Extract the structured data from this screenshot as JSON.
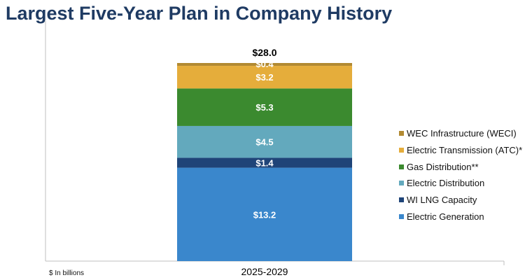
{
  "page": {
    "title": "Largest Five-Year Plan in Company History",
    "unit_note": "$ In billions"
  },
  "colors": {
    "title": "#1f3b63",
    "axis": "#bfbfbf",
    "label_light": "#ffffff",
    "label_dark": "#000000"
  },
  "chart_data": {
    "type": "bar",
    "stacked": true,
    "categories": [
      "2025-2029"
    ],
    "total": 28.0,
    "total_label": "$28.0",
    "ylim": [
      0,
      28
    ],
    "grid": false,
    "legend_position": "right",
    "series": [
      {
        "name": "Electric Generation",
        "values": [
          13.2
        ],
        "label": "$13.2",
        "color": "#3a87cc"
      },
      {
        "name": "WI LNG Capacity",
        "values": [
          1.4
        ],
        "label": "$1.4",
        "color": "#1f4478"
      },
      {
        "name": "Electric Distribution",
        "values": [
          4.5
        ],
        "label": "$4.5",
        "color": "#63a9bd"
      },
      {
        "name": "Gas Distribution**",
        "values": [
          5.3
        ],
        "label": "$5.3",
        "color": "#3b8a2f"
      },
      {
        "name": "Electric Transmission (ATC)*",
        "values": [
          3.2
        ],
        "label": "$3.2",
        "color": "#e5ad3b"
      },
      {
        "name": "WEC Infrastructure (WECI)",
        "values": [
          0.4
        ],
        "label": "$0.4",
        "color": "#b28a32"
      }
    ]
  }
}
